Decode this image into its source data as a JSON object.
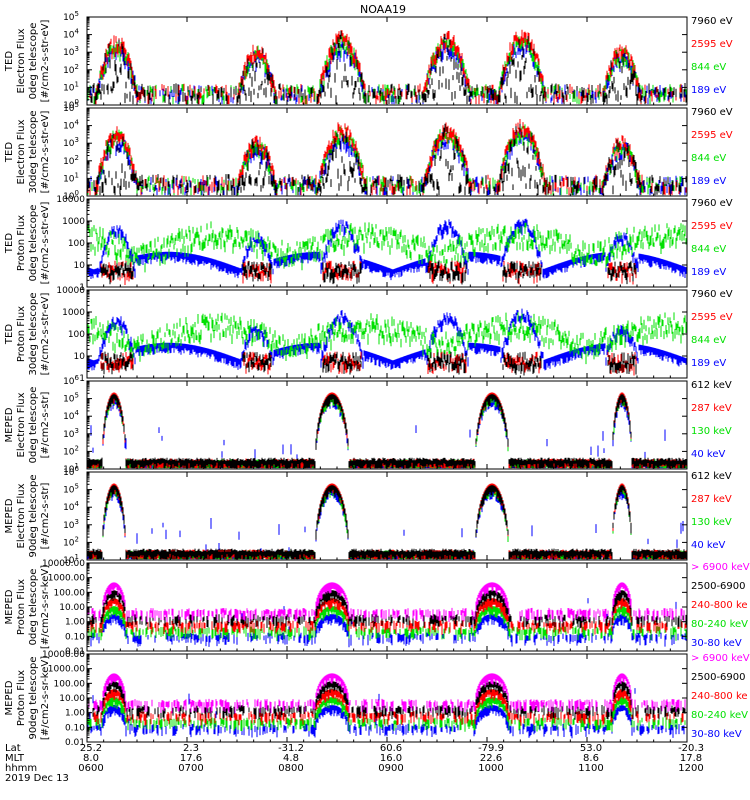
{
  "title": "NOAA19",
  "colors": {
    "blue": "#0000ff",
    "red": "#ff0000",
    "green": "#00e000",
    "black": "#000000",
    "magenta": "#ff00ff",
    "axis": "#000000"
  },
  "footer": {
    "row_labels": [
      "Lat",
      "MLT",
      "hhmm",
      "2019 Dec 13"
    ],
    "lat": [
      "25.2",
      "2.3",
      "-31.2",
      "60.6",
      "-79.9",
      "53.0",
      "-20.3"
    ],
    "mlt": [
      "8.0",
      "17.6",
      "4.8",
      "16.0",
      "22.6",
      "8.6",
      "17.8"
    ],
    "hhmm": [
      "0600",
      "0700",
      "0800",
      "0900",
      "1000",
      "1100",
      "1200"
    ]
  },
  "chart_data": [
    {
      "type": "line",
      "ylabel": [
        "TED",
        "Electron Flux",
        "0deg telescope",
        "[#/cm2-s-str-eV]"
      ],
      "yscale": "log",
      "yticks": [
        "10^0",
        "10^1",
        "10^2",
        "10^3",
        "10^4",
        "10^5"
      ],
      "ylim": [
        1,
        100000
      ],
      "xlim": [
        "0600",
        "1200"
      ],
      "series": [
        {
          "name": "7960 eV",
          "color": "black"
        },
        {
          "name": "2595 eV",
          "color": "red"
        },
        {
          "name": "844 eV",
          "color": "green"
        },
        {
          "name": "189 eV",
          "color": "blue"
        }
      ]
    },
    {
      "type": "line",
      "ylabel": [
        "TED",
        "Electron Flux",
        "30deg telescope",
        "[#/cm2-s-str-eV]"
      ],
      "yscale": "log",
      "yticks": [
        "10^0",
        "10^1",
        "10^2",
        "10^3",
        "10^4",
        "10^5"
      ],
      "ylim": [
        1,
        100000
      ],
      "xlim": [
        "0600",
        "1200"
      ],
      "series": [
        {
          "name": "7960 eV",
          "color": "black"
        },
        {
          "name": "2595 eV",
          "color": "red"
        },
        {
          "name": "844 eV",
          "color": "green"
        },
        {
          "name": "189 eV",
          "color": "blue"
        }
      ]
    },
    {
      "type": "line",
      "ylabel": [
        "TED",
        "Proton Flux",
        "0deg telescope",
        "[#/cm2-s-str-eV]"
      ],
      "yscale": "log",
      "yticks": [
        "1",
        "10",
        "100",
        "1000",
        "10000"
      ],
      "ylim": [
        1,
        10000
      ],
      "xlim": [
        "0600",
        "1200"
      ],
      "series": [
        {
          "name": "7960 eV",
          "color": "black"
        },
        {
          "name": "2595 eV",
          "color": "red"
        },
        {
          "name": "844 eV",
          "color": "green"
        },
        {
          "name": "189 eV",
          "color": "blue"
        }
      ]
    },
    {
      "type": "line",
      "ylabel": [
        "TED",
        "Proton Flux",
        "30deg telescope",
        "[#/cm2-s-str-eV]"
      ],
      "yscale": "log",
      "yticks": [
        "1",
        "10",
        "100",
        "1000",
        "10000"
      ],
      "ylim": [
        1,
        10000
      ],
      "xlim": [
        "0600",
        "1200"
      ],
      "series": [
        {
          "name": "7960 eV",
          "color": "black"
        },
        {
          "name": "2595 eV",
          "color": "red"
        },
        {
          "name": "844 eV",
          "color": "green"
        },
        {
          "name": "189 eV",
          "color": "blue"
        }
      ]
    },
    {
      "type": "line",
      "ylabel": [
        "MEPED",
        "Electron Flux",
        "0deg telescope",
        "[#/cm2-s-str]"
      ],
      "yscale": "log",
      "yticks": [
        "10^1",
        "10^2",
        "10^3",
        "10^4",
        "10^5",
        "10^6"
      ],
      "ylim": [
        10,
        1000000
      ],
      "xlim": [
        "0600",
        "1200"
      ],
      "series": [
        {
          "name": "612 keV",
          "color": "black"
        },
        {
          "name": "287 keV",
          "color": "red"
        },
        {
          "name": "130 keV",
          "color": "green"
        },
        {
          "name": "40 keV",
          "color": "blue"
        }
      ]
    },
    {
      "type": "line",
      "ylabel": [
        "MEPED",
        "Electron Flux",
        "90deg telescope",
        "[#/cm2-s-str]"
      ],
      "yscale": "log",
      "yticks": [
        "10^1",
        "10^2",
        "10^3",
        "10^4",
        "10^5",
        "10^6"
      ],
      "ylim": [
        10,
        1000000
      ],
      "xlim": [
        "0600",
        "1200"
      ],
      "series": [
        {
          "name": "612 keV",
          "color": "black"
        },
        {
          "name": "287 keV",
          "color": "red"
        },
        {
          "name": "130 keV",
          "color": "green"
        },
        {
          "name": "40 keV",
          "color": "blue"
        }
      ]
    },
    {
      "type": "line",
      "ylabel": [
        "MEPED",
        "Proton Flux",
        "0deg telescope",
        "[#/cm2-s-sr-keV]"
      ],
      "yscale": "log",
      "yticks": [
        "0.01",
        "0.10",
        "1.00",
        "10.00",
        "100.00",
        "1000.00",
        "10000.00"
      ],
      "ylim": [
        0.01,
        10000
      ],
      "xlim": [
        "0600",
        "1200"
      ],
      "series": [
        {
          "name": "> 6900 keV",
          "color": "magenta"
        },
        {
          "name": "2500-6900",
          "color": "black"
        },
        {
          "name": "240-800 ke",
          "color": "red"
        },
        {
          "name": "80-240 keV",
          "color": "green"
        },
        {
          "name": "30-80 keV",
          "color": "blue"
        }
      ]
    },
    {
      "type": "line",
      "ylabel": [
        "MEPED",
        "Proton Flux",
        "90deg telescope",
        "[#/cm2-s-sr-keV]"
      ],
      "yscale": "log",
      "yticks": [
        "0.01",
        "0.10",
        "1.00",
        "10.00",
        "100.00",
        "1000.00",
        "10000.00"
      ],
      "ylim": [
        0.01,
        10000
      ],
      "xlim": [
        "0600",
        "1200"
      ],
      "series": [
        {
          "name": "> 6900 keV",
          "color": "magenta"
        },
        {
          "name": "2500-6900",
          "color": "black"
        },
        {
          "name": "240-800 ke",
          "color": "red"
        },
        {
          "name": "80-240 keV",
          "color": "green"
        },
        {
          "name": "30-80 keV",
          "color": "blue"
        }
      ]
    }
  ]
}
